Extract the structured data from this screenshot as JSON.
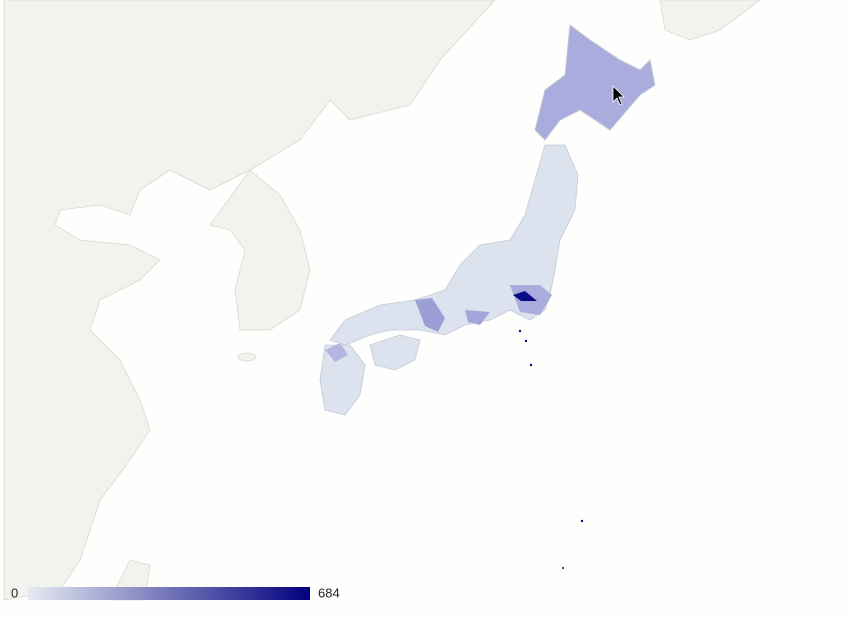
{
  "legend": {
    "min": 0,
    "max": 684,
    "color_low": "#e6eaf2",
    "color_high": "#00007f"
  }
}
